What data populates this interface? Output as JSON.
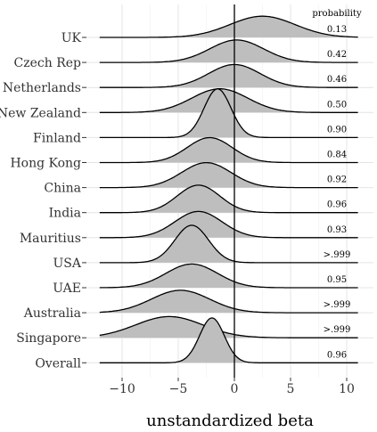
{
  "chart_data": {
    "type": "ridgeline",
    "title": "",
    "xlabel": "unstandardized beta",
    "ylabel": "",
    "xlim": [
      -13,
      11
    ],
    "x_ticks": [
      -10,
      -5,
      0,
      5,
      10
    ],
    "x_tick_labels": [
      "−10",
      "−5",
      "0",
      "5",
      "10"
    ],
    "reference_line_x": 0,
    "grid": true,
    "fill_color": "#bebebe",
    "line_color": "#000000",
    "annotation_header": "probability",
    "series": [
      {
        "name": "UK",
        "center": 2.5,
        "sd": 2.9,
        "height": 0.85,
        "probability": "0.13"
      },
      {
        "name": "Czech Rep",
        "center": 0.2,
        "sd": 2.4,
        "height": 0.9,
        "probability": "0.42"
      },
      {
        "name": "Netherlands",
        "center": 0.0,
        "sd": 2.3,
        "height": 0.92,
        "probability": "0.46"
      },
      {
        "name": "New Zealand",
        "center": -1.3,
        "sd": 2.5,
        "height": 0.95,
        "probability": "0.50"
      },
      {
        "name": "Finland",
        "center": -1.5,
        "sd": 1.2,
        "height": 1.95,
        "probability": "0.90"
      },
      {
        "name": "Hong Kong",
        "center": -2.2,
        "sd": 2.0,
        "height": 1.0,
        "probability": "0.84"
      },
      {
        "name": "China",
        "center": -2.5,
        "sd": 2.2,
        "height": 1.0,
        "probability": "0.92"
      },
      {
        "name": "India",
        "center": -3.2,
        "sd": 1.9,
        "height": 1.1,
        "probability": "0.96"
      },
      {
        "name": "Mauritius",
        "center": -3.2,
        "sd": 2.1,
        "height": 1.05,
        "probability": "0.93"
      },
      {
        "name": "USA",
        "center": -3.8,
        "sd": 1.5,
        "height": 1.5,
        "probability": ">.999"
      },
      {
        "name": "UAE",
        "center": -3.8,
        "sd": 2.3,
        "height": 0.95,
        "probability": "0.95"
      },
      {
        "name": "Australia",
        "center": -4.8,
        "sd": 2.6,
        "height": 0.9,
        "probability": ">.999"
      },
      {
        "name": "Singapore",
        "center": -5.8,
        "sd": 3.0,
        "height": 0.85,
        "probability": ">.999"
      },
      {
        "name": "Overall",
        "center": -2.0,
        "sd": 1.1,
        "height": 1.8,
        "probability": "0.96"
      }
    ]
  }
}
